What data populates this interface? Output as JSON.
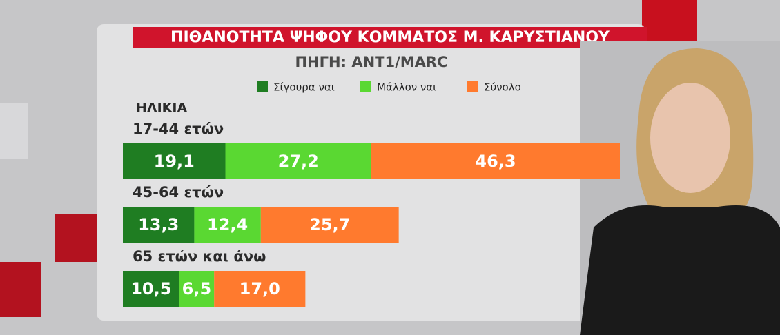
{
  "chart_data": {
    "type": "stacked-bar-horizontal",
    "title": "ΠΙΘΑΝΟΤΗΤΑ ΨΗΦΟΥ ΚΟΜΜΑΤΟΣ Μ. ΚΑΡΥΣΤΙΑΝΟΥ",
    "subtitle": "ΠΗΓΗ: ANT1/MARC",
    "group_label": "ΗΛΙΚΙΑ",
    "categories": [
      "17-44 ετών",
      "45-64 ετών",
      "65 ετών και άνω"
    ],
    "series": [
      {
        "name": "Σίγουρα ναι",
        "color": "#1f7d22",
        "values": [
          19.1,
          13.3,
          10.5
        ],
        "value_labels": [
          "19,1",
          "13,3",
          "10,5"
        ]
      },
      {
        "name": "Μάλλον ναι",
        "color": "#5ad832",
        "values": [
          27.2,
          12.4,
          6.5
        ],
        "value_labels": [
          "27,2",
          "12,4",
          "6,5"
        ]
      },
      {
        "name": "Σύνολο",
        "color": "#ff7a2e",
        "values": [
          46.3,
          25.7,
          17.0
        ],
        "value_labels": [
          "46,3",
          "25,7",
          "17,0"
        ]
      }
    ]
  }
}
